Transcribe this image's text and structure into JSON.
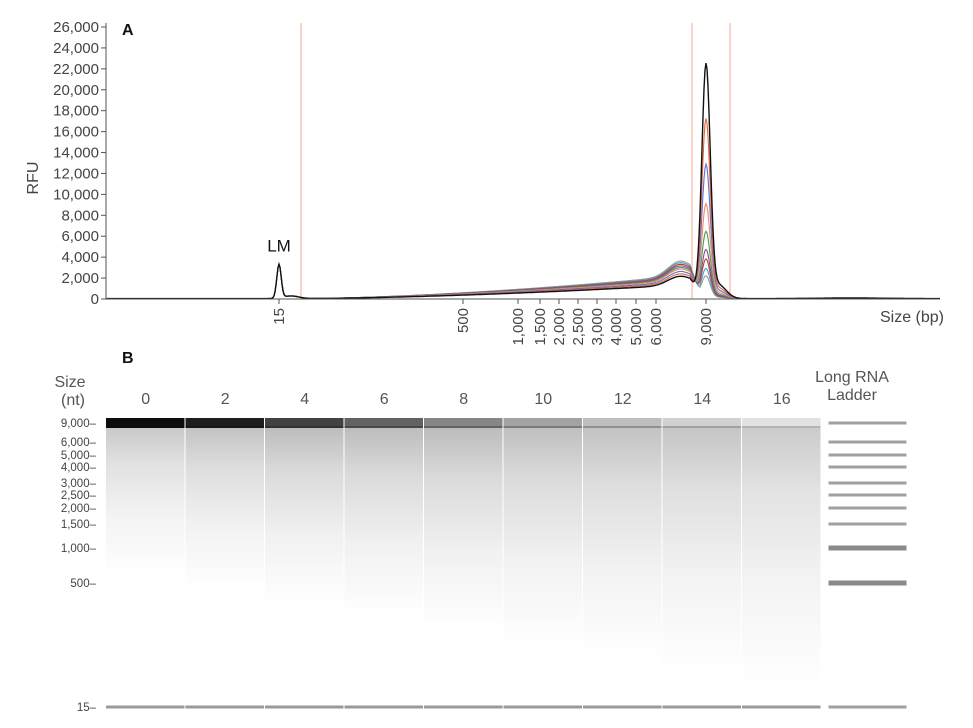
{
  "chart_data": [
    {
      "panel": "A",
      "type": "line",
      "xlabel": "Size (bp)",
      "ylabel": "RFU",
      "ylim": [
        0,
        26000
      ],
      "yticks": [
        "0",
        "2,000",
        "4,000",
        "6,000",
        "8,000",
        "10,000",
        "12,000",
        "14,000",
        "16,000",
        "18,000",
        "20,000",
        "22,000",
        "24,000",
        "26,000"
      ],
      "xticks": [
        "15",
        "500",
        "1,000",
        "1,500",
        "2,000",
        "2,500",
        "3,000",
        "4,000",
        "5,000",
        "6,000",
        "9,000"
      ],
      "annotation": "LM",
      "lower_marker_peak": {
        "x": 15,
        "y": 3200
      },
      "main_peak_x": 9000,
      "series_peaks": [
        22000,
        16800,
        12500,
        8800,
        6200,
        4500,
        3600,
        2700,
        2000
      ],
      "series_shoulder": [
        1400,
        1550,
        1700,
        1850,
        1950,
        2050,
        2150,
        2250,
        2350
      ],
      "series_colors": [
        "#111111",
        "#e0633a",
        "#5b6fd6",
        "#ef8a63",
        "#4a9e4a",
        "#8b4a9e",
        "#c23b3b",
        "#3aa7b8",
        "#9a9a9a"
      ],
      "grid": false,
      "legend": "none"
    },
    {
      "panel": "B",
      "type": "heatmap",
      "y_title_line1": "Size",
      "y_title_line2": "(nt)",
      "yticks": [
        "9,000",
        "6,000",
        "5,000",
        "4,000",
        "3,000",
        "2,500",
        "2,000",
        "1,500",
        "1,000",
        "500",
        "15"
      ],
      "lanes": [
        "0",
        "2",
        "4",
        "6",
        "8",
        "10",
        "12",
        "14",
        "16"
      ],
      "main_band_intensity": [
        1.0,
        0.93,
        0.78,
        0.65,
        0.5,
        0.38,
        0.27,
        0.19,
        0.12
      ],
      "smear_intensity": [
        0.18,
        0.2,
        0.22,
        0.22,
        0.22,
        0.21,
        0.2,
        0.19,
        0.17
      ],
      "ladder_label_line1": "Long RNA",
      "ladder_label_line2": "Ladder",
      "ladder_bands": [
        9000,
        6000,
        5000,
        4000,
        3000,
        2500,
        2000,
        1500,
        1000,
        500,
        15
      ],
      "marker_band": 15
    }
  ]
}
